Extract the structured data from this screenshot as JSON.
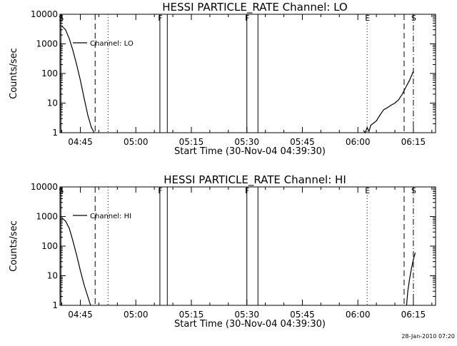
{
  "chart_data": [
    {
      "type": "line",
      "title": "HESSI PARTICLE_RATE Channel: LO",
      "xlabel": "Start Time (30-Nov-04 04:39:30)",
      "ylabel": "Counts/sec",
      "yscale": "log",
      "ylim": [
        1,
        10000
      ],
      "xlim": [
        "04:39:30",
        "06:21:00"
      ],
      "x_ticks": [
        "04:45",
        "05:00",
        "05:15",
        "05:30",
        "05:45",
        "06:00",
        "06:15"
      ],
      "y_ticks": [
        "1",
        "10",
        "100",
        "1000",
        "10000"
      ],
      "grid": false,
      "legend": {
        "placement": "top-left",
        "entries": [
          "Channel: LO"
        ]
      },
      "series": [
        {
          "name": "Channel: LO",
          "segments": [
            {
              "x": [
                "04:40:00",
                "04:41:00",
                "04:42:00",
                "04:43:00",
                "04:44:00",
                "04:45:00",
                "04:46:00",
                "04:47:00",
                "04:48:00",
                "04:48:45"
              ],
              "y": [
                4000,
                3000,
                1500,
                600,
                200,
                60,
                15,
                4,
                1.5,
                1
              ]
            },
            {
              "x": [
                "06:01:30",
                "06:02:00",
                "06:02:30",
                "06:03:00",
                "06:03:30",
                "06:04:00",
                "06:05:00",
                "06:06:00",
                "06:07:00",
                "06:08:00",
                "06:09:00",
                "06:10:00",
                "06:11:00",
                "06:12:00",
                "06:13:00",
                "06:14:00",
                "06:15:00"
              ],
              "y": [
                1.2,
                1.0,
                1.5,
                1.1,
                1.8,
                2.0,
                2.5,
                4,
                6,
                7,
                8.5,
                10,
                13,
                20,
                35,
                60,
                120
              ]
            }
          ]
        }
      ],
      "markers": [
        {
          "label": "S",
          "time": "04:39:45",
          "style": "solid"
        },
        {
          "label": "",
          "time": "04:49:00",
          "style": "dashed"
        },
        {
          "label": "",
          "time": "04:52:30",
          "style": "dotted"
        },
        {
          "label": "F",
          "time": "05:06:30",
          "style": "solid"
        },
        {
          "label": "",
          "time": "05:08:30",
          "style": "solid"
        },
        {
          "label": "F",
          "time": "05:30:00",
          "style": "solid"
        },
        {
          "label": "",
          "time": "05:33:00",
          "style": "solid"
        },
        {
          "label": "E",
          "time": "06:02:30",
          "style": "dotted"
        },
        {
          "label": "",
          "time": "06:12:30",
          "style": "dashed"
        },
        {
          "label": "S",
          "time": "06:15:00",
          "style": "dashdot"
        }
      ]
    },
    {
      "type": "line",
      "title": "HESSI PARTICLE_RATE Channel: HI",
      "xlabel": "Start Time (30-Nov-04 04:39:30)",
      "ylabel": "Counts/sec",
      "yscale": "log",
      "ylim": [
        1,
        10000
      ],
      "xlim": [
        "04:39:30",
        "06:21:00"
      ],
      "x_ticks": [
        "04:45",
        "05:00",
        "05:15",
        "05:30",
        "05:45",
        "06:00",
        "06:15"
      ],
      "y_ticks": [
        "1",
        "10",
        "100",
        "1000",
        "10000"
      ],
      "grid": false,
      "legend": {
        "placement": "top-left",
        "entries": [
          "Channel: HI"
        ]
      },
      "series": [
        {
          "name": "Channel: HI",
          "segments": [
            {
              "x": [
                "04:40:00",
                "04:41:00",
                "04:42:00",
                "04:43:00",
                "04:44:00",
                "04:45:00",
                "04:46:00",
                "04:47:00",
                "04:47:45"
              ],
              "y": [
                900,
                700,
                400,
                150,
                50,
                15,
                5,
                2,
                1
              ]
            },
            {
              "x": [
                "06:13:10",
                "06:13:30",
                "06:14:00",
                "06:14:30",
                "06:15:00",
                "06:15:30"
              ],
              "y": [
                1,
                3,
                8,
                18,
                35,
                60
              ]
            }
          ]
        }
      ],
      "markers": [
        {
          "label": "S",
          "time": "04:39:45",
          "style": "solid"
        },
        {
          "label": "",
          "time": "04:49:00",
          "style": "dashed"
        },
        {
          "label": "",
          "time": "04:52:30",
          "style": "dotted"
        },
        {
          "label": "F",
          "time": "05:06:30",
          "style": "solid"
        },
        {
          "label": "",
          "time": "05:08:30",
          "style": "solid"
        },
        {
          "label": "F",
          "time": "05:30:00",
          "style": "solid"
        },
        {
          "label": "",
          "time": "05:33:00",
          "style": "solid"
        },
        {
          "label": "E",
          "time": "06:02:30",
          "style": "dotted"
        },
        {
          "label": "",
          "time": "06:12:30",
          "style": "dashed"
        },
        {
          "label": "S",
          "time": "06:15:00",
          "style": "dashdot"
        }
      ]
    }
  ],
  "footer": {
    "timestamp": "28-Jan-2010 07:20"
  }
}
